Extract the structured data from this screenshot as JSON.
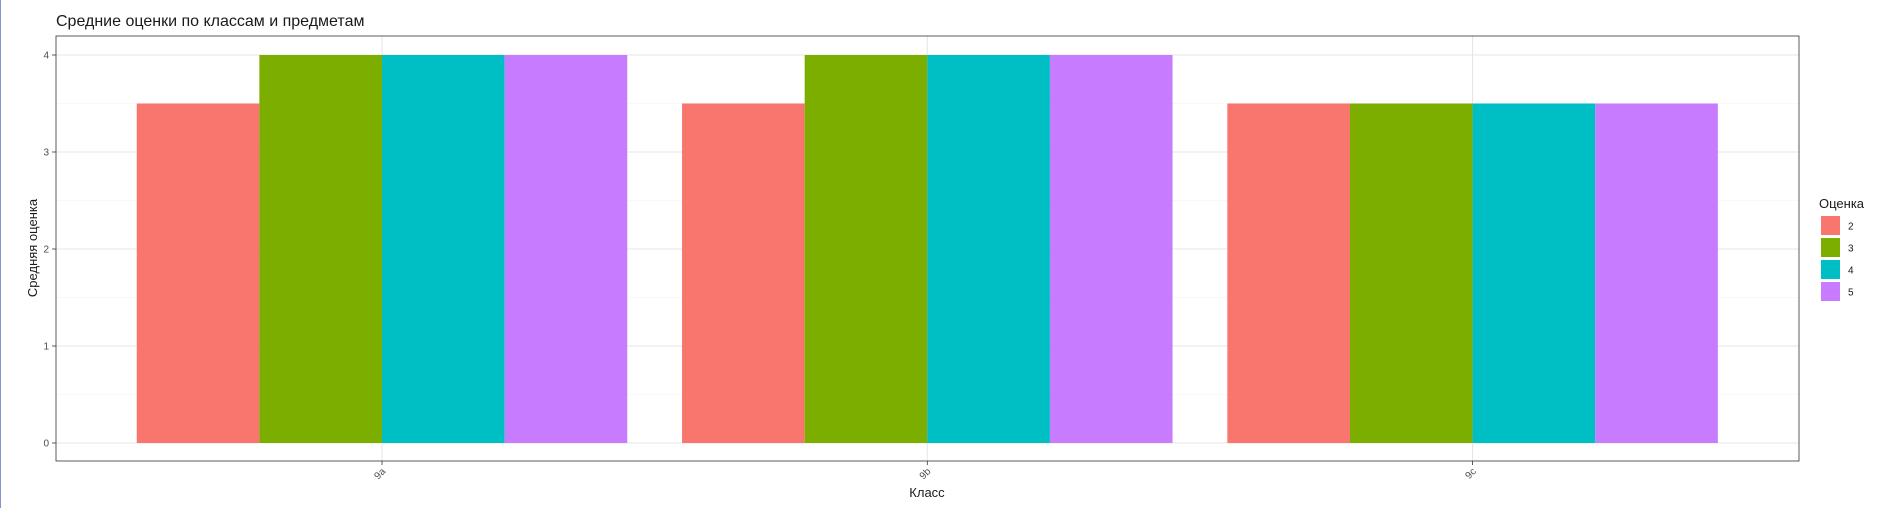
{
  "chart_data": {
    "type": "bar",
    "title": "Средние оценки по классам и предметам",
    "xlabel": "Класс",
    "ylabel": "Средняя оценка",
    "categories": [
      "9a",
      "9b",
      "9c"
    ],
    "series": [
      {
        "name": "2",
        "color": "#F8766D",
        "values": [
          3.5,
          3.5,
          3.5
        ]
      },
      {
        "name": "3",
        "color": "#7CAE00",
        "values": [
          4,
          4,
          3.5
        ]
      },
      {
        "name": "4",
        "color": "#00BFC4",
        "values": [
          4,
          4,
          3.5
        ]
      },
      {
        "name": "5",
        "color": "#C77CFF",
        "values": [
          4,
          4,
          3.5
        ]
      }
    ],
    "ylim": [
      0,
      4
    ],
    "yticks": [
      "0",
      "1",
      "2",
      "3",
      "4"
    ],
    "grid": true,
    "legend": {
      "title": "Оценка",
      "position": "right"
    }
  }
}
